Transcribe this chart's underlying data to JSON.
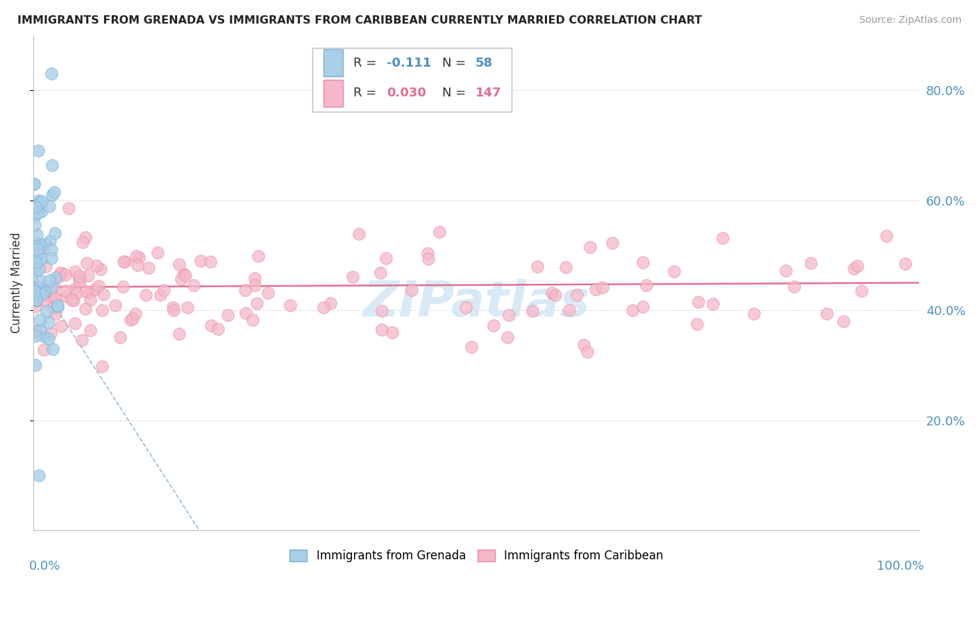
{
  "title": "IMMIGRANTS FROM GRENADA VS IMMIGRANTS FROM CARIBBEAN CURRENTLY MARRIED CORRELATION CHART",
  "source": "Source: ZipAtlas.com",
  "ylabel": "Currently Married",
  "legend1_label": "Immigrants from Grenada",
  "legend2_label": "Immigrants from Caribbean",
  "r1": "-0.111",
  "n1": "58",
  "r2": "0.030",
  "n2": "147",
  "color_blue_fill": "#a8cfe8",
  "color_blue_edge": "#7bafd4",
  "color_pink_fill": "#f4b8c8",
  "color_pink_edge": "#e888a0",
  "color_blue_line": "#4a90c4",
  "color_pink_line": "#e07090",
  "color_blue_text": "#4a90c4",
  "color_pink_text": "#e07090",
  "color_dark_text": "#333333",
  "watermark_color": "#d5e8f5",
  "grid_color": "#e0e0e0",
  "xlim": [
    0.0,
    1.0
  ],
  "ylim": [
    0.0,
    0.9
  ],
  "yticks": [
    0.2,
    0.4,
    0.6,
    0.8
  ],
  "ytick_labels": [
    "20.0%",
    "40.0%",
    "60.0%",
    "80.0%"
  ]
}
